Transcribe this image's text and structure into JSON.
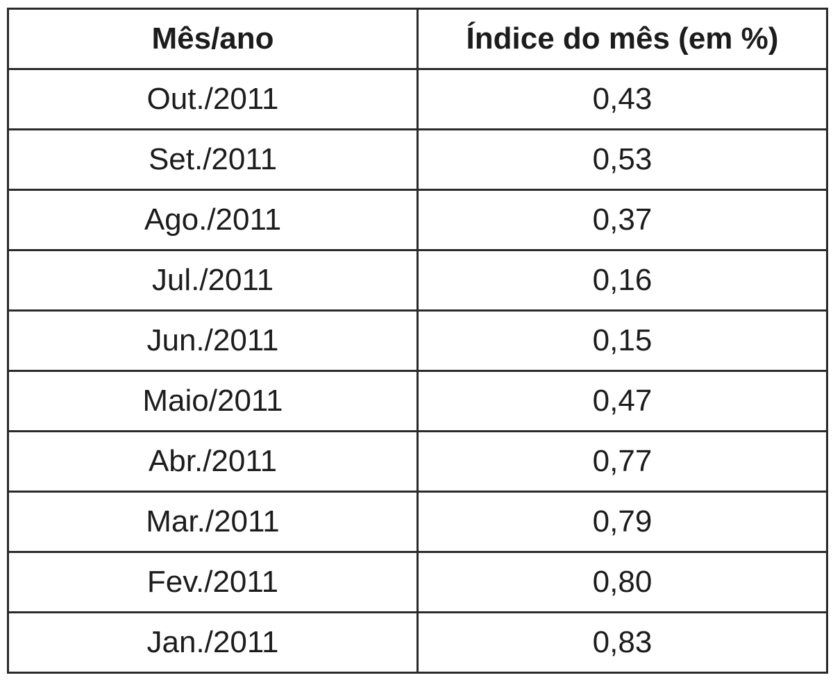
{
  "table": {
    "headers": [
      "Mês/ano",
      "Índice do mês (em %)"
    ],
    "rows": [
      [
        "Out./2011",
        "0,43"
      ],
      [
        "Set./2011",
        "0,53"
      ],
      [
        "Ago./2011",
        "0,37"
      ],
      [
        "Jul./2011",
        "0,16"
      ],
      [
        "Jun./2011",
        "0,15"
      ],
      [
        "Maio/2011",
        "0,47"
      ],
      [
        "Abr./2011",
        "0,77"
      ],
      [
        "Mar./2011",
        "0,79"
      ],
      [
        "Fev./2011",
        "0,80"
      ],
      [
        "Jan./2011",
        "0,83"
      ]
    ]
  }
}
